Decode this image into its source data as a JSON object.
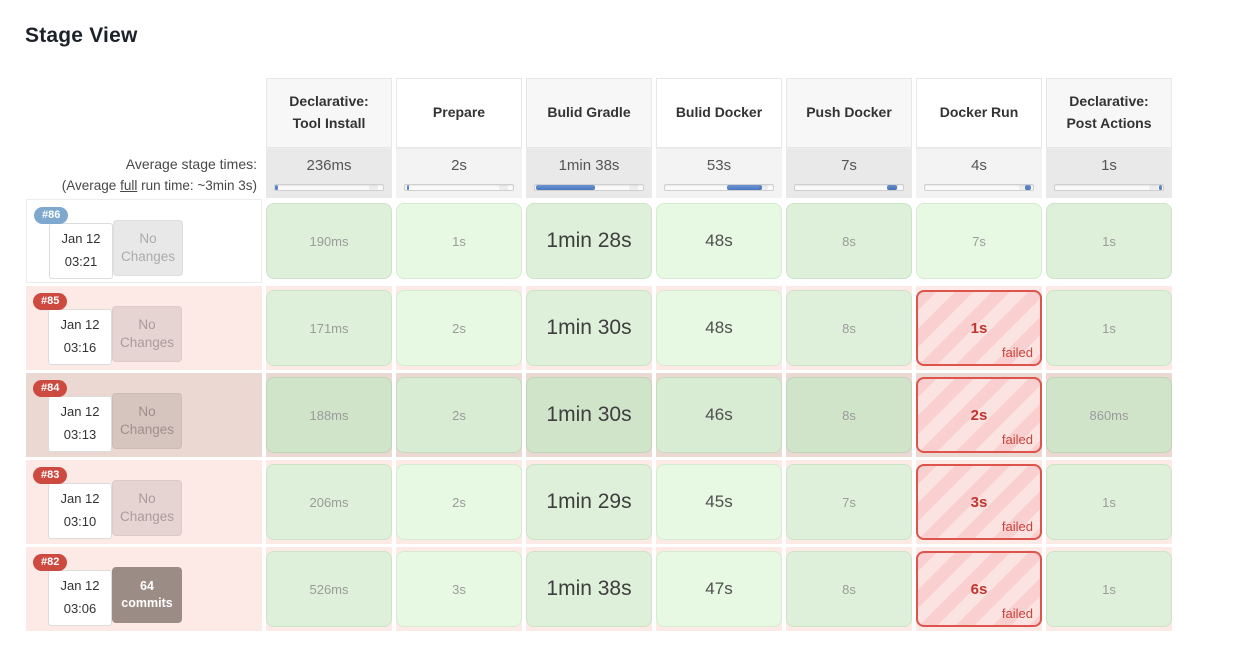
{
  "page": {
    "title": "Stage View"
  },
  "colors": {
    "success_badge": "#7fa8cf",
    "failed_badge": "#cd4a41",
    "timeline_bar_fill": "#4b77be",
    "success_cell": "#e7f8e3",
    "failed_cell_border": "#dd544d",
    "failed_text": "#c0362f",
    "failed_row_bg": "#fdeae7",
    "highlighted_row_bg": "#ecd8d2"
  },
  "table": {
    "average_label": "Average stage times:",
    "full_run": {
      "prefix": "(Average ",
      "underlined": "full",
      "suffix": " run time: ~3min 3s)"
    },
    "failed_label": "failed",
    "columns": [
      {
        "label": "Declarative:\nTool Install",
        "avg": "236ms",
        "bar_start": "0%",
        "bar_width": "2.5%"
      },
      {
        "label": "Prepare",
        "avg": "2s",
        "bar_start": "1.5%",
        "bar_width": "2%"
      },
      {
        "label": "Bulid Gradle",
        "avg": "1min 38s",
        "bar_start": "0.5%",
        "bar_width": "55%"
      },
      {
        "label": "Bulid Docker",
        "avg": "53s",
        "bar_start": "57%",
        "bar_width": "33%"
      },
      {
        "label": "Push Docker",
        "avg": "7s",
        "bar_start": "85%",
        "bar_width": "9%"
      },
      {
        "label": "Docker Run",
        "avg": "4s",
        "bar_start": "93%",
        "bar_width": "5%"
      },
      {
        "label": "Declarative:\nPost Actions",
        "avg": "1s",
        "bar_start": "96.5%",
        "bar_width": "2.5%"
      }
    ],
    "builds": [
      {
        "id": "#86",
        "status": "success",
        "variant": "normal",
        "date": "Jan 12",
        "time": "03:21",
        "changes": "No\nChanges",
        "changes_type": "none",
        "stages": [
          {
            "text": "190ms",
            "status": "ok",
            "emphasis": "low"
          },
          {
            "text": "1s",
            "status": "ok",
            "emphasis": "low"
          },
          {
            "text": "1min 28s",
            "status": "ok",
            "emphasis": "high"
          },
          {
            "text": "48s",
            "status": "ok",
            "emphasis": "mid"
          },
          {
            "text": "8s",
            "status": "ok",
            "emphasis": "low"
          },
          {
            "text": "7s",
            "status": "ok",
            "emphasis": "low"
          },
          {
            "text": "1s",
            "status": "ok",
            "emphasis": "low"
          }
        ]
      },
      {
        "id": "#85",
        "status": "failed",
        "variant": "normal",
        "date": "Jan 12",
        "time": "03:16",
        "changes": "No\nChanges",
        "changes_type": "none",
        "stages": [
          {
            "text": "171ms",
            "status": "ok",
            "emphasis": "low"
          },
          {
            "text": "2s",
            "status": "ok",
            "emphasis": "low"
          },
          {
            "text": "1min 30s",
            "status": "ok",
            "emphasis": "high"
          },
          {
            "text": "48s",
            "status": "ok",
            "emphasis": "mid"
          },
          {
            "text": "8s",
            "status": "ok",
            "emphasis": "low"
          },
          {
            "text": "1s",
            "status": "failed",
            "emphasis": "low"
          },
          {
            "text": "1s",
            "status": "ok",
            "emphasis": "low"
          }
        ]
      },
      {
        "id": "#84",
        "status": "failed",
        "variant": "dark",
        "date": "Jan 12",
        "time": "03:13",
        "changes": "No\nChanges",
        "changes_type": "none",
        "stages": [
          {
            "text": "188ms",
            "status": "ok",
            "emphasis": "low"
          },
          {
            "text": "2s",
            "status": "ok",
            "emphasis": "low"
          },
          {
            "text": "1min 30s",
            "status": "ok",
            "emphasis": "high"
          },
          {
            "text": "46s",
            "status": "ok",
            "emphasis": "mid"
          },
          {
            "text": "8s",
            "status": "ok",
            "emphasis": "low"
          },
          {
            "text": "2s",
            "status": "failed",
            "emphasis": "low"
          },
          {
            "text": "860ms",
            "status": "ok",
            "emphasis": "low"
          }
        ]
      },
      {
        "id": "#83",
        "status": "failed",
        "variant": "normal",
        "date": "Jan 12",
        "time": "03:10",
        "changes": "No\nChanges",
        "changes_type": "none",
        "stages": [
          {
            "text": "206ms",
            "status": "ok",
            "emphasis": "low"
          },
          {
            "text": "2s",
            "status": "ok",
            "emphasis": "low"
          },
          {
            "text": "1min 29s",
            "status": "ok",
            "emphasis": "high"
          },
          {
            "text": "45s",
            "status": "ok",
            "emphasis": "mid"
          },
          {
            "text": "7s",
            "status": "ok",
            "emphasis": "low"
          },
          {
            "text": "3s",
            "status": "failed",
            "emphasis": "low"
          },
          {
            "text": "1s",
            "status": "ok",
            "emphasis": "low"
          }
        ]
      },
      {
        "id": "#82",
        "status": "failed",
        "variant": "normal",
        "date": "Jan 12",
        "time": "03:06",
        "changes": "64\ncommits",
        "changes_type": "commits",
        "stages": [
          {
            "text": "526ms",
            "status": "ok",
            "emphasis": "low"
          },
          {
            "text": "3s",
            "status": "ok",
            "emphasis": "low"
          },
          {
            "text": "1min 38s",
            "status": "ok",
            "emphasis": "high"
          },
          {
            "text": "47s",
            "status": "ok",
            "emphasis": "mid"
          },
          {
            "text": "8s",
            "status": "ok",
            "emphasis": "low"
          },
          {
            "text": "6s",
            "status": "failed",
            "emphasis": "low"
          },
          {
            "text": "1s",
            "status": "ok",
            "emphasis": "low"
          }
        ]
      }
    ]
  }
}
